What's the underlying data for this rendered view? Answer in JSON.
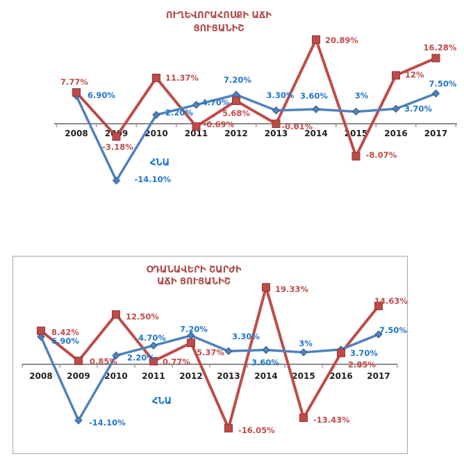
{
  "colors": {
    "background": "#FFFFFF",
    "red_series": "#BE4B48",
    "red_marker_border": "#8E3634",
    "red_label": "#BE4B48",
    "blue_series": "#4F81BD",
    "blue_marker_border": "#31598C",
    "blue_label": "#1F76C8",
    "title_red": "#AE4C4B",
    "axis_gray": "#8C8C8C",
    "year_label": "#1F1F1F",
    "frame_border": "#A6A6A6"
  },
  "chart_data": [
    {
      "type": "line",
      "title_lines": [
        "ՈՒՂԵՎՈՐԱՀՈՍՔԻ ԱՃԻ",
        "ՑՈՒՑԱՆԻՇ"
      ],
      "categories": [
        "2008",
        "2009",
        "2010",
        "2011",
        "2012",
        "2013",
        "2014",
        "2015",
        "2016",
        "2017"
      ],
      "ylim": [
        -16,
        22
      ],
      "gridlines": false,
      "legend": "none",
      "series": [
        {
          "marker": "square",
          "color": "#BE4B48",
          "label_color": "#BE4B48",
          "values": [
            7.77,
            -3.18,
            11.37,
            -0.69,
            5.68,
            -0.01,
            20.89,
            -8.07,
            12,
            16.28
          ],
          "point_labels": [
            "7.77%",
            "-3.18%",
            "11.37%",
            "-0.69%",
            "5.68%",
            "-0.01%",
            "20.89%",
            "-8.07%",
            "12%",
            "16.28%"
          ],
          "label_layout": [
            [
              -3,
              -11,
              "middle"
            ],
            [
              2,
              19,
              "middle"
            ],
            [
              13,
              4,
              "start"
            ],
            [
              10,
              1,
              "start"
            ],
            [
              0,
              22,
              "middle"
            ],
            [
              8,
              8,
              "start"
            ],
            [
              13,
              5,
              "start"
            ],
            [
              14,
              2,
              "start"
            ],
            [
              13,
              3,
              "start"
            ],
            [
              6,
              -11,
              "middle"
            ]
          ]
        },
        {
          "name": "ՀՆԱ",
          "marker": "diamond",
          "color": "#4F81BD",
          "label_color": "#1F76C8",
          "values": [
            6.9,
            -14.1,
            2.2,
            4.7,
            7.2,
            3.3,
            3.6,
            3,
            3.7,
            7.5
          ],
          "point_labels": [
            "6.90%",
            "-14.10%",
            "2.20%",
            "4.70%",
            "7.20%",
            "3.30%",
            "3.60%",
            "3%",
            "3.70%",
            "7.50%"
          ],
          "label_layout": [
            [
              16,
              3,
              "start"
            ],
            [
              26,
              2,
              "start"
            ],
            [
              13,
              1,
              "start"
            ],
            [
              8,
              1,
              "start"
            ],
            [
              2,
              -17,
              "middle"
            ],
            [
              6,
              -18,
              "middle"
            ],
            [
              -3,
              -15,
              "middle"
            ],
            [
              8,
              -19,
              "middle"
            ],
            [
              12,
              4,
              "start"
            ],
            [
              10,
              -10,
              "middle"
            ]
          ]
        }
      ]
    },
    {
      "type": "line",
      "title_lines": [
        "ՕԴԱՆԱՎԵՐԻ ՇԱՐԺԻ",
        "ԱՃԻ ՑՈՒՑԱՆԻՇ"
      ],
      "categories": [
        "2008",
        "2009",
        "2010",
        "2011",
        "2012",
        "2013",
        "2014",
        "2015",
        "2016",
        "2017"
      ],
      "ylim": [
        -17,
        21
      ],
      "gridlines": false,
      "legend": "none",
      "series": [
        {
          "marker": "square",
          "color": "#BE4B48",
          "label_color": "#BE4B48",
          "values": [
            8.42,
            0.85,
            12.5,
            0.77,
            5.37,
            -16.05,
            19.33,
            -13.43,
            2.85,
            14.63
          ],
          "point_labels": [
            "8.42%",
            "0.85%",
            "12.50%",
            "0.77%",
            "5.37%",
            "-16.05%",
            "19.33%",
            "-13.43%",
            "2.85%",
            "14.63%"
          ],
          "label_layout": [
            [
              15,
              6,
              "start"
            ],
            [
              16,
              5,
              "start"
            ],
            [
              14,
              7,
              "start"
            ],
            [
              13,
              5,
              "start"
            ],
            [
              8,
              18,
              "start"
            ],
            [
              14,
              7,
              "start"
            ],
            [
              13,
              7,
              "start"
            ],
            [
              14,
              7,
              "start"
            ],
            [
              30,
              21,
              "middle"
            ],
            [
              18,
              -3,
              "middle"
            ]
          ]
        },
        {
          "name": "ՀՆԱ",
          "marker": "diamond",
          "color": "#4F81BD",
          "label_color": "#1F76C8",
          "values": [
            6.9,
            -14.1,
            2.2,
            4.7,
            7.2,
            3.3,
            3.6,
            3,
            3.7,
            7.5
          ],
          "point_labels": [
            "6.90%",
            "-14.10%",
            "2.20%",
            "4.70%",
            "7.20%",
            "3.30%",
            "3.60%",
            "3%",
            "3.70%",
            "7.50%"
          ],
          "label_layout": [
            [
              15,
              10,
              "start"
            ],
            [
              15,
              7,
              "start"
            ],
            [
              16,
              7,
              "start"
            ],
            [
              -2,
              -7,
              "middle"
            ],
            [
              4,
              -5,
              "middle"
            ],
            [
              25,
              -17,
              "middle"
            ],
            [
              -1,
              22,
              "middle"
            ],
            [
              3,
              -9,
              "middle"
            ],
            [
              13,
              9,
              "start"
            ],
            [
              21,
              -2,
              "middle"
            ]
          ]
        }
      ]
    }
  ]
}
